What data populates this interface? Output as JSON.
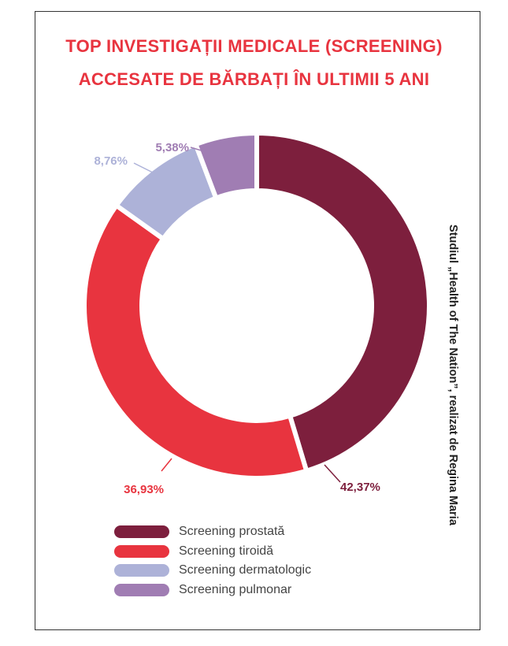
{
  "chart_data": {
    "type": "pie",
    "subtype": "donut",
    "title_lines": [
      "TOP INVESTIGAȚII MEDICALE (SCREENING)",
      "ACCESATE DE BĂRBAȚI ÎN ULTIMII 5 ANI"
    ],
    "source": "Studiul „Health of The Nation”, realizat de Regina Maria",
    "slices": [
      {
        "name": "Screening prostată",
        "value": 42.37,
        "label": "42,37%",
        "color": "#7d1f3d"
      },
      {
        "name": "Screening tiroidă",
        "value": 36.93,
        "label": "36,93%",
        "color": "#e8343f"
      },
      {
        "name": "Screening dermatologic",
        "value": 8.76,
        "label": "8,76%",
        "color": "#adb2d8"
      },
      {
        "name": "Screening pulmonar",
        "value": 5.38,
        "label": "5,38%",
        "color": "#a07db3"
      }
    ],
    "legend_position": "bottom"
  }
}
